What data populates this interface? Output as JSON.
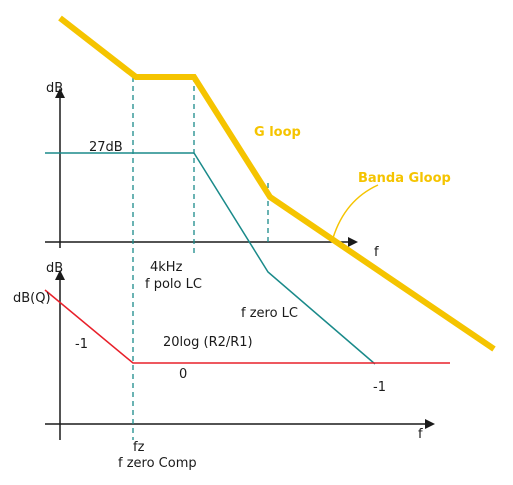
{
  "upper_plot": {
    "y_label": "dB",
    "x_label": "f",
    "gain_label": "27dB",
    "pole_freq_label": "4kHz",
    "pole_label": "f polo LC",
    "zero_label": "f zero LC",
    "slope_label": "-1"
  },
  "lower_plot": {
    "y_label": "dB",
    "x_label": "f",
    "q_label": "dB(Q)",
    "slope_label": "-1",
    "gain_label": "20log (R2/R1)",
    "zero_level_label": "0",
    "fz_label": "fz",
    "fz_name_label": "f zero Comp"
  },
  "gloop": {
    "label": "G loop",
    "band_label": "Banda Gloop",
    "color": "#f5c400"
  },
  "colors": {
    "lc_curve": "#1a8a8a",
    "comp_curve": "#e8202a",
    "gloop_curve": "#f5c400",
    "axes": "#1a1a1a",
    "dashed_guides": "#1a8a8a"
  }
}
